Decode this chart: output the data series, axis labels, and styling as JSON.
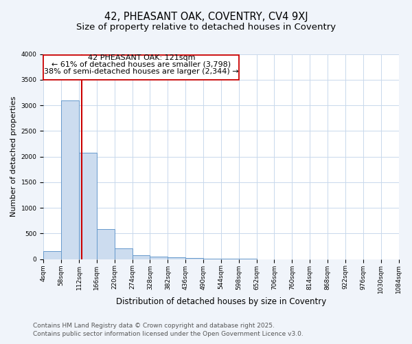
{
  "title": "42, PHEASANT OAK, COVENTRY, CV4 9XJ",
  "subtitle": "Size of property relative to detached houses in Coventry",
  "xlabel": "Distribution of detached houses by size in Coventry",
  "ylabel": "Number of detached properties",
  "bin_edges": [
    4,
    58,
    112,
    166,
    220,
    274,
    328,
    382,
    436,
    490,
    544,
    598,
    652,
    706,
    760,
    814,
    868,
    922,
    976,
    1030,
    1084
  ],
  "bar_heights": [
    150,
    3100,
    2080,
    580,
    210,
    70,
    50,
    30,
    20,
    10,
    5,
    3,
    2,
    1,
    1,
    0,
    0,
    0,
    0,
    0
  ],
  "bar_color": "#ccdcef",
  "bar_edge_color": "#6699cc",
  "vline_x": 121,
  "vline_color": "#cc0000",
  "ylim": [
    0,
    4000
  ],
  "yticks": [
    0,
    500,
    1000,
    1500,
    2000,
    2500,
    3000,
    3500,
    4000
  ],
  "annot_line1": "42 PHEASANT OAK: 121sqm",
  "annot_line2": "← 61% of detached houses are smaller (3,798)",
  "annot_line3": "38% of semi-detached houses are larger (2,344) →",
  "footer_line1": "Contains HM Land Registry data © Crown copyright and database right 2025.",
  "footer_line2": "Contains public sector information licensed under the Open Government Licence v3.0.",
  "bg_color": "#f0f4fa",
  "plot_bg_color": "#ffffff",
  "grid_color": "#c8d8ec",
  "title_fontsize": 10.5,
  "subtitle_fontsize": 9.5,
  "tick_label_fontsize": 6.5,
  "xlabel_fontsize": 8.5,
  "ylabel_fontsize": 8,
  "annotation_fontsize": 8,
  "footer_fontsize": 6.5
}
